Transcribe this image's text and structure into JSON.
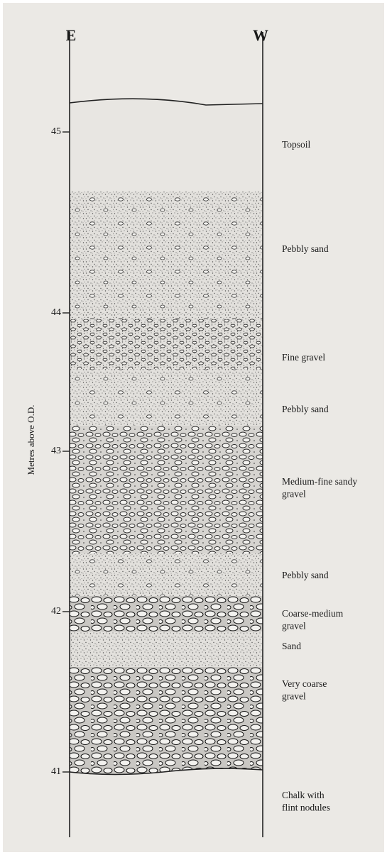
{
  "header": {
    "left": "E",
    "right": "W"
  },
  "axis": {
    "label": "Metres above O.D.",
    "ticks": [
      45,
      44,
      43,
      42,
      41
    ]
  },
  "layers": [
    {
      "lines": [
        "Topsoil"
      ]
    },
    {
      "lines": [
        "Pebbly sand"
      ]
    },
    {
      "lines": [
        "Fine gravel"
      ]
    },
    {
      "lines": [
        "Pebbly sand"
      ]
    },
    {
      "lines": [
        "Medium-fine sandy",
        "gravel"
      ]
    },
    {
      "lines": [
        "Pebbly sand"
      ]
    },
    {
      "lines": [
        "Coarse-medium",
        "gravel"
      ]
    },
    {
      "lines": [
        "Sand"
      ]
    },
    {
      "lines": [
        "Very coarse",
        "gravel"
      ]
    },
    {
      "lines": [
        "Chalk with",
        "flint nodules"
      ]
    }
  ]
}
